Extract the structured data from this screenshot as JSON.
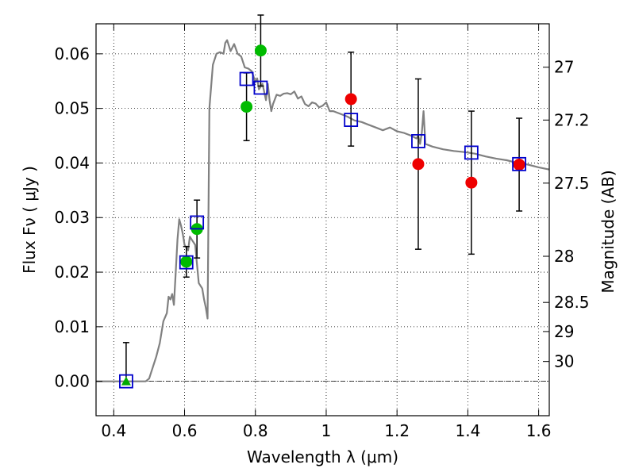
{
  "chart_data": {
    "type": "scatter",
    "xlabel": "Wavelength  λ (μm)",
    "ylabel": "Flux  Fν  ( μJy )",
    "y2label": "Magnitude (AB)",
    "xlim": [
      0.35,
      1.63
    ],
    "ylim": [
      -0.0063,
      0.0655
    ],
    "grid": true,
    "x_ticks": [
      {
        "v": 0.4,
        "label": "0.4"
      },
      {
        "v": 0.6,
        "label": "0.6"
      },
      {
        "v": 0.8,
        "label": "0.8"
      },
      {
        "v": 1.0,
        "label": "1"
      },
      {
        "v": 1.2,
        "label": "1.2"
      },
      {
        "v": 1.4,
        "label": "1.4"
      },
      {
        "v": 1.6,
        "label": "1.6"
      }
    ],
    "y_ticks": [
      {
        "v": 0.0,
        "label": "0.00"
      },
      {
        "v": 0.01,
        "label": "0.01"
      },
      {
        "v": 0.02,
        "label": "0.02"
      },
      {
        "v": 0.03,
        "label": "0.03"
      },
      {
        "v": 0.04,
        "label": "0.04"
      },
      {
        "v": 0.05,
        "label": "0.05"
      },
      {
        "v": 0.06,
        "label": "0.06"
      }
    ],
    "mag_ticks": [
      {
        "mag": 27,
        "label": "27"
      },
      {
        "mag": 27.2,
        "label": "27.2"
      },
      {
        "mag": 27.5,
        "label": "27.5"
      },
      {
        "mag": 28,
        "label": "28"
      },
      {
        "mag": 28.5,
        "label": "28.5"
      },
      {
        "mag": 29,
        "label": "29"
      },
      {
        "mag": 30,
        "label": "30"
      }
    ],
    "model_spectrum": [
      [
        0.35,
        0.0
      ],
      [
        0.49,
        0.0
      ],
      [
        0.5,
        0.0005
      ],
      [
        0.52,
        0.0045
      ],
      [
        0.53,
        0.007
      ],
      [
        0.54,
        0.011
      ],
      [
        0.55,
        0.0125
      ],
      [
        0.555,
        0.0155
      ],
      [
        0.56,
        0.015
      ],
      [
        0.565,
        0.016
      ],
      [
        0.57,
        0.014
      ],
      [
        0.575,
        0.02
      ],
      [
        0.58,
        0.026
      ],
      [
        0.585,
        0.0297
      ],
      [
        0.59,
        0.0285
      ],
      [
        0.595,
        0.027
      ],
      [
        0.6,
        0.025
      ],
      [
        0.61,
        0.024
      ],
      [
        0.615,
        0.0265
      ],
      [
        0.62,
        0.026
      ],
      [
        0.63,
        0.025
      ],
      [
        0.64,
        0.018
      ],
      [
        0.65,
        0.017
      ],
      [
        0.655,
        0.015
      ],
      [
        0.66,
        0.0135
      ],
      [
        0.665,
        0.0115
      ],
      [
        0.67,
        0.05
      ],
      [
        0.68,
        0.058
      ],
      [
        0.69,
        0.06
      ],
      [
        0.7,
        0.0603
      ],
      [
        0.71,
        0.06
      ],
      [
        0.715,
        0.062
      ],
      [
        0.72,
        0.0625
      ],
      [
        0.73,
        0.0605
      ],
      [
        0.74,
        0.0618
      ],
      [
        0.75,
        0.06
      ],
      [
        0.76,
        0.0595
      ],
      [
        0.77,
        0.0575
      ],
      [
        0.78,
        0.0573
      ],
      [
        0.79,
        0.0568
      ],
      [
        0.8,
        0.0548
      ],
      [
        0.805,
        0.0555
      ],
      [
        0.81,
        0.0535
      ],
      [
        0.82,
        0.0545
      ],
      [
        0.83,
        0.0515
      ],
      [
        0.835,
        0.0545
      ],
      [
        0.84,
        0.0515
      ],
      [
        0.845,
        0.0495
      ],
      [
        0.85,
        0.0508
      ],
      [
        0.86,
        0.0525
      ],
      [
        0.87,
        0.0523
      ],
      [
        0.88,
        0.0527
      ],
      [
        0.89,
        0.0528
      ],
      [
        0.9,
        0.0526
      ],
      [
        0.91,
        0.0531
      ],
      [
        0.92,
        0.0518
      ],
      [
        0.93,
        0.0522
      ],
      [
        0.94,
        0.0508
      ],
      [
        0.95,
        0.0504
      ],
      [
        0.96,
        0.0511
      ],
      [
        0.97,
        0.0509
      ],
      [
        0.98,
        0.0502
      ],
      [
        0.99,
        0.0505
      ],
      [
        1.0,
        0.0511
      ],
      [
        1.01,
        0.0495
      ],
      [
        1.02,
        0.0495
      ],
      [
        1.04,
        0.049
      ],
      [
        1.06,
        0.0485
      ],
      [
        1.08,
        0.0478
      ],
      [
        1.1,
        0.0475
      ],
      [
        1.12,
        0.047
      ],
      [
        1.14,
        0.0465
      ],
      [
        1.16,
        0.046
      ],
      [
        1.18,
        0.0465
      ],
      [
        1.2,
        0.0458
      ],
      [
        1.22,
        0.0455
      ],
      [
        1.24,
        0.045
      ],
      [
        1.255,
        0.0445
      ],
      [
        1.26,
        0.045
      ],
      [
        1.265,
        0.0435
      ],
      [
        1.27,
        0.0455
      ],
      [
        1.275,
        0.0495
      ],
      [
        1.28,
        0.0435
      ],
      [
        1.3,
        0.043
      ],
      [
        1.33,
        0.0425
      ],
      [
        1.36,
        0.0422
      ],
      [
        1.39,
        0.042
      ],
      [
        1.42,
        0.0417
      ],
      [
        1.45,
        0.0412
      ],
      [
        1.48,
        0.0408
      ],
      [
        1.51,
        0.0405
      ],
      [
        1.54,
        0.04
      ],
      [
        1.57,
        0.0397
      ],
      [
        1.6,
        0.0392
      ],
      [
        1.63,
        0.0388
      ]
    ],
    "series": [
      {
        "marker": "square",
        "color": "#0000cc",
        "points": [
          {
            "x": 0.435,
            "y": 0.0
          },
          {
            "x": 0.605,
            "y": 0.0218
          },
          {
            "x": 0.635,
            "y": 0.0291
          },
          {
            "x": 0.775,
            "y": 0.0554
          },
          {
            "x": 0.815,
            "y": 0.0538
          },
          {
            "x": 1.07,
            "y": 0.0479
          },
          {
            "x": 1.26,
            "y": 0.044
          },
          {
            "x": 1.41,
            "y": 0.0419
          },
          {
            "x": 1.545,
            "y": 0.0398
          }
        ]
      },
      {
        "marker": "circle",
        "color": "#00bb00",
        "points": [
          {
            "x": 0.605,
            "y": 0.0219,
            "yerr_low": 0.0028,
            "yerr_high": 0.0028
          },
          {
            "x": 0.635,
            "y": 0.0279,
            "yerr_low": 0.0053,
            "yerr_high": 0.0053
          },
          {
            "x": 0.775,
            "y": 0.0503,
            "yerr_low": 0.0062,
            "yerr_high": 0.0062
          },
          {
            "x": 0.815,
            "y": 0.0606,
            "yerr_low": 0.0065,
            "yerr_high": 0.0065
          }
        ]
      },
      {
        "marker": "circle",
        "color": "#ee0000",
        "points": [
          {
            "x": 1.07,
            "y": 0.0517,
            "yerr_low": 0.0086,
            "yerr_high": 0.0086
          },
          {
            "x": 1.26,
            "y": 0.0398,
            "yerr_low": 0.0156,
            "yerr_high": 0.0156
          },
          {
            "x": 1.41,
            "y": 0.0364,
            "yerr_low": 0.0131,
            "yerr_high": 0.0131
          },
          {
            "x": 1.545,
            "y": 0.0397,
            "yerr_low": 0.0085,
            "yerr_high": 0.0085
          }
        ]
      },
      {
        "marker": "triangle",
        "color": "#00aa00",
        "points": [
          {
            "x": 0.435,
            "y": 0.0,
            "yerr_low": 0.0,
            "yerr_high": 0.0071
          }
        ]
      }
    ],
    "colors": {
      "model": "#808080",
      "errorbar": "#000000",
      "grid": "#000000",
      "zero_line": "#000000"
    }
  }
}
